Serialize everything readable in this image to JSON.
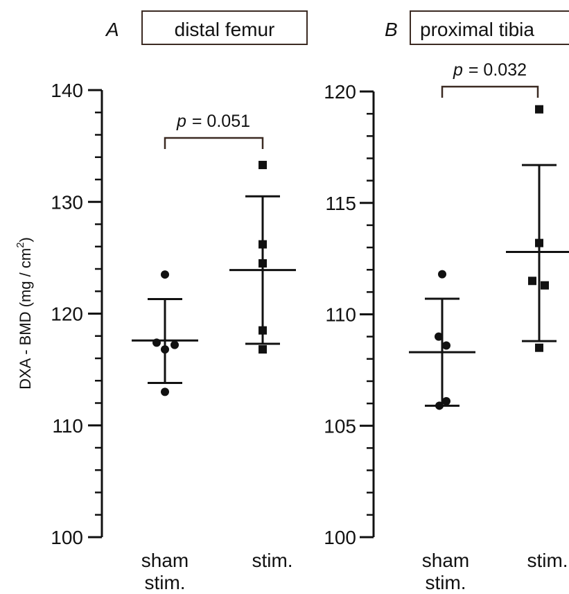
{
  "chart_data": [
    {
      "type": "scatter",
      "panel": "A",
      "title": "distal femur",
      "ylabel": "DXA - BMD (mg / cm2)",
      "ylim": [
        100,
        140
      ],
      "yticks": [
        100,
        110,
        120,
        130,
        140
      ],
      "categories": [
        "sham stim.",
        "stim."
      ],
      "series": [
        {
          "category": "sham stim.",
          "points": [
            123.5,
            117.4,
            117.2,
            116.8,
            113.0
          ],
          "mean": 117.6,
          "sd_upper": 121.3,
          "sd_lower": 113.8
        },
        {
          "category": "stim.",
          "points": [
            133.3,
            126.2,
            124.5,
            118.5,
            116.8
          ],
          "mean": 123.9,
          "sd_upper": 130.5,
          "sd_lower": 117.3
        }
      ],
      "annotation": {
        "p_symbol": "p",
        "p_value": "= 0.051"
      }
    },
    {
      "type": "scatter",
      "panel": "B",
      "title": "proximal tibia",
      "ylim": [
        100,
        120
      ],
      "yticks": [
        100,
        105,
        110,
        115,
        120
      ],
      "categories": [
        "sham stim.",
        "stim."
      ],
      "series": [
        {
          "category": "sham stim.",
          "points": [
            111.8,
            109.0,
            108.6,
            106.1,
            105.9
          ],
          "mean": 108.3,
          "sd_upper": 110.7,
          "sd_lower": 105.9
        },
        {
          "category": "stim.",
          "points": [
            119.2,
            113.2,
            111.5,
            111.3,
            108.5
          ],
          "mean": 112.8,
          "sd_upper": 116.7,
          "sd_lower": 108.8
        }
      ],
      "annotation": {
        "p_symbol": "p",
        "p_value": "= 0.032"
      }
    }
  ]
}
